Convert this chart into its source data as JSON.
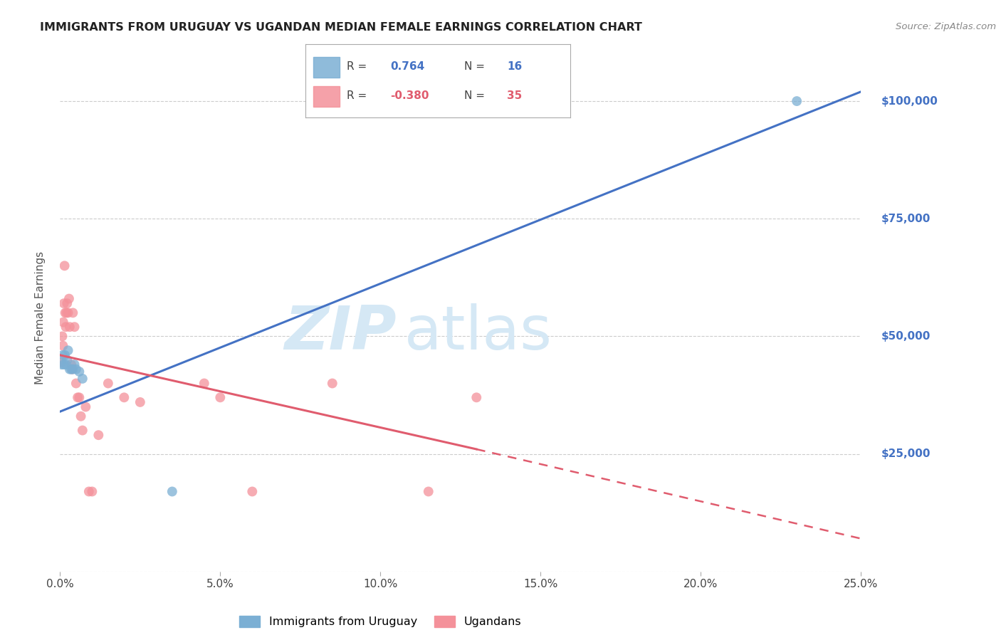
{
  "title": "IMMIGRANTS FROM URUGUAY VS UGANDAN MEDIAN FEMALE EARNINGS CORRELATION CHART",
  "source": "Source: ZipAtlas.com",
  "xlabel_ticks": [
    "0.0%",
    "5.0%",
    "10.0%",
    "15.0%",
    "20.0%",
    "25.0%"
  ],
  "xlabel_vals": [
    0.0,
    5.0,
    10.0,
    15.0,
    20.0,
    25.0
  ],
  "ylabel_label": "Median Female Earnings",
  "ylabel_ticks": [
    0,
    25000,
    50000,
    75000,
    100000
  ],
  "ylabel_labels": [
    "",
    "$25,000",
    "$50,000",
    "$75,000",
    "$100,000"
  ],
  "ylim": [
    0,
    108000
  ],
  "xlim": [
    0.0,
    25.0
  ],
  "R_blue": "0.764",
  "N_blue": "16",
  "R_pink": "-0.380",
  "N_pink": "35",
  "blue_line": [
    [
      0.0,
      34000
    ],
    [
      25.0,
      102000
    ]
  ],
  "pink_line_solid": [
    [
      0.0,
      46000
    ],
    [
      13.0,
      26000
    ]
  ],
  "pink_line_dashed": [
    [
      13.0,
      26000
    ],
    [
      25.0,
      7000
    ]
  ],
  "blue_scatter": [
    [
      0.05,
      44000
    ],
    [
      0.08,
      46000
    ],
    [
      0.12,
      44000
    ],
    [
      0.15,
      46000
    ],
    [
      0.18,
      44000
    ],
    [
      0.22,
      45000
    ],
    [
      0.25,
      47000
    ],
    [
      0.3,
      43000
    ],
    [
      0.35,
      43000
    ],
    [
      0.4,
      43000
    ],
    [
      0.45,
      44000
    ],
    [
      0.5,
      43000
    ],
    [
      0.6,
      42500
    ],
    [
      0.7,
      41000
    ],
    [
      3.5,
      17000
    ],
    [
      23.0,
      100000
    ]
  ],
  "pink_scatter": [
    [
      0.05,
      44500
    ],
    [
      0.07,
      50000
    ],
    [
      0.09,
      48000
    ],
    [
      0.1,
      53000
    ],
    [
      0.12,
      57000
    ],
    [
      0.14,
      65000
    ],
    [
      0.16,
      55000
    ],
    [
      0.18,
      52000
    ],
    [
      0.2,
      55000
    ],
    [
      0.22,
      57000
    ],
    [
      0.25,
      55000
    ],
    [
      0.28,
      58000
    ],
    [
      0.3,
      52000
    ],
    [
      0.35,
      44000
    ],
    [
      0.38,
      43000
    ],
    [
      0.4,
      55000
    ],
    [
      0.45,
      52000
    ],
    [
      0.5,
      40000
    ],
    [
      0.55,
      37000
    ],
    [
      0.6,
      37000
    ],
    [
      0.65,
      33000
    ],
    [
      0.7,
      30000
    ],
    [
      0.8,
      35000
    ],
    [
      0.9,
      17000
    ],
    [
      1.0,
      17000
    ],
    [
      1.2,
      29000
    ],
    [
      1.5,
      40000
    ],
    [
      2.0,
      37000
    ],
    [
      2.5,
      36000
    ],
    [
      4.5,
      40000
    ],
    [
      5.0,
      37000
    ],
    [
      6.0,
      17000
    ],
    [
      8.5,
      40000
    ],
    [
      11.5,
      17000
    ],
    [
      13.0,
      37000
    ]
  ],
  "blue_color": "#7BAFD4",
  "pink_color": "#F4919A",
  "blue_line_color": "#4472C4",
  "pink_line_color": "#E05C6E",
  "background_color": "#FFFFFF",
  "grid_color": "#CCCCCC",
  "right_axis_color": "#4472C4",
  "watermark_zip_color": "#D5E8F5",
  "watermark_atlas_color": "#D5E8F5",
  "title_fontsize": 11.5,
  "scatter_size": 100
}
